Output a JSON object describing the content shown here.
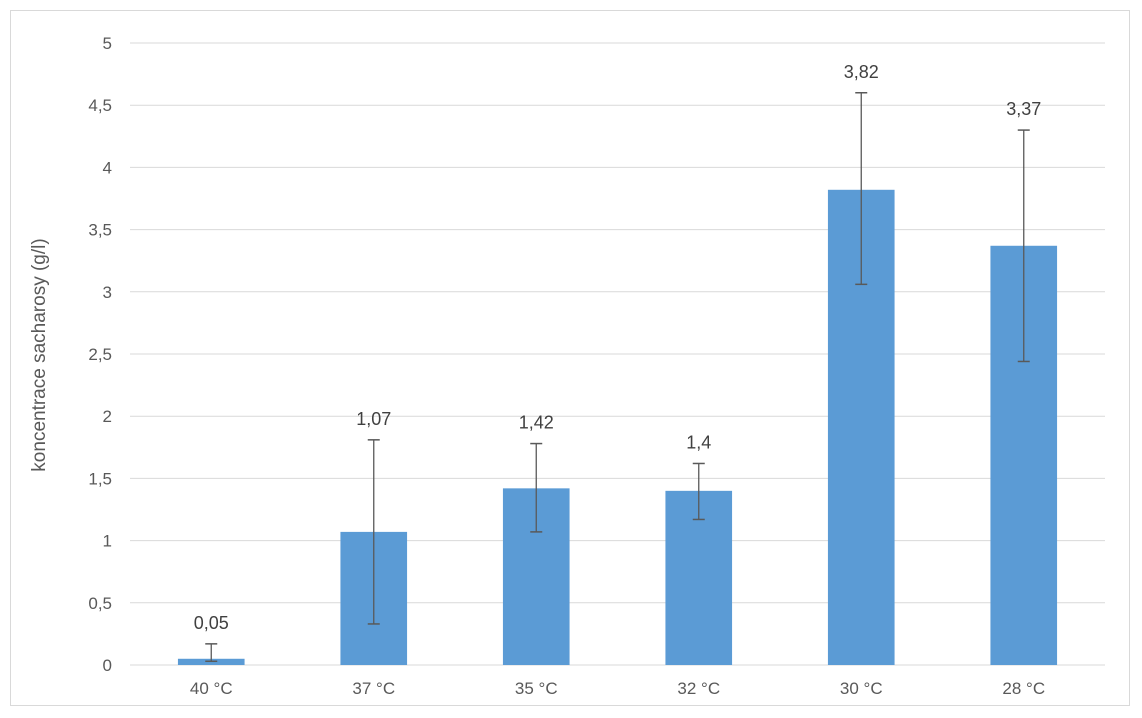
{
  "chart_data": {
    "type": "bar",
    "categories": [
      "40 °C",
      "37 °C",
      "35 °C",
      "32 °C",
      "30 °C",
      "28 °C"
    ],
    "values": [
      0.05,
      1.07,
      1.42,
      1.4,
      3.82,
      3.37
    ],
    "data_labels": [
      "0,05",
      "1,07",
      "1,42",
      "1,4",
      "3,82",
      "3,37"
    ],
    "error_bars": [
      {
        "low": 0.03,
        "high": 0.17
      },
      {
        "low": 0.33,
        "high": 1.81
      },
      {
        "low": 1.07,
        "high": 1.78
      },
      {
        "low": 1.17,
        "high": 1.62
      },
      {
        "low": 3.06,
        "high": 4.6
      },
      {
        "low": 2.44,
        "high": 4.3
      }
    ],
    "ylabel": "koncentrace sacharosy (g/l)",
    "xlabel": "",
    "ylim": [
      0,
      5
    ],
    "yticks": [
      "0",
      "0,5",
      "1",
      "1,5",
      "2",
      "2,5",
      "3",
      "3,5",
      "4",
      "4,5",
      "5"
    ],
    "grid": true,
    "bar_color": "#5b9bd5",
    "error_color": "#595959",
    "grid_color": "#d9d9d9"
  }
}
